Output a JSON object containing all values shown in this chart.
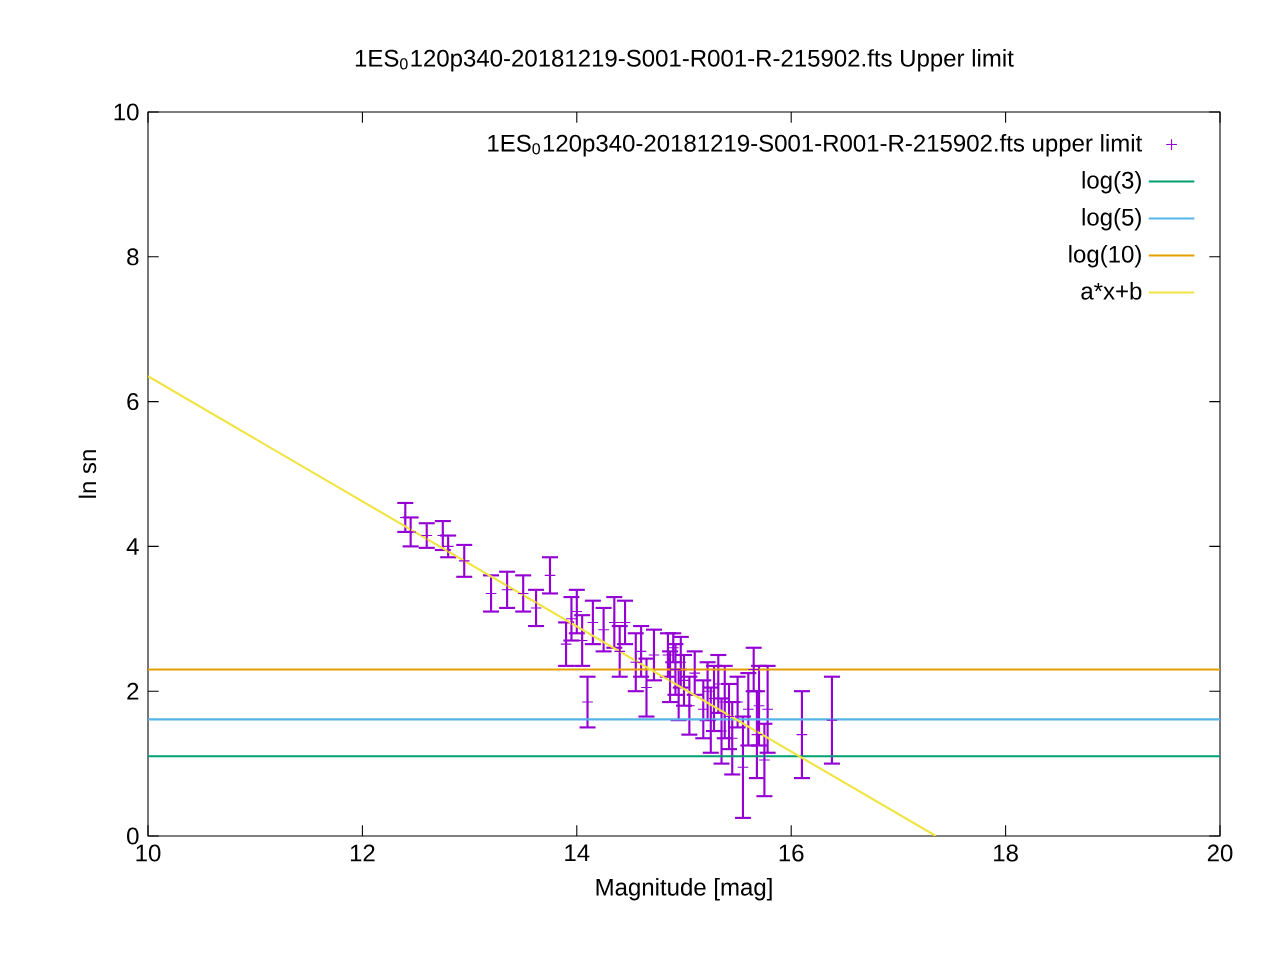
{
  "chart_data": {
    "type": "line",
    "title": "1ES$_{0}$120p340-20181219-S001-R001-R-215902.fts Upper limit",
    "xlabel": "Magnitude [mag]",
    "ylabel": "ln sn",
    "xlim": [
      10,
      20
    ],
    "ylim": [
      0,
      10
    ],
    "xticks": [
      10,
      12,
      14,
      16,
      18,
      20
    ],
    "yticks": [
      0,
      2,
      4,
      6,
      8,
      10
    ],
    "legend": "top right",
    "series": [
      {
        "name": "1ES$_{0}$120p340-20181219-S001-R001-R-215902.fts upper limit",
        "type": "scatter",
        "marker": "cross",
        "color": "#9400d3",
        "x": [
          12.4,
          12.45,
          12.6,
          12.75,
          12.8,
          12.95,
          13.2,
          13.35,
          13.5,
          13.62,
          13.75,
          13.9,
          13.95,
          14.0,
          14.05,
          14.1,
          14.15,
          14.25,
          14.35,
          14.4,
          14.45,
          14.55,
          14.6,
          14.65,
          14.72,
          14.85,
          14.87,
          14.9,
          14.92,
          14.95,
          14.97,
          15.0,
          15.05,
          15.1,
          15.18,
          15.22,
          15.25,
          15.28,
          15.32,
          15.35,
          15.38,
          15.42,
          15.45,
          15.5,
          15.55,
          15.6,
          15.65,
          15.68,
          15.7,
          15.75,
          15.78,
          16.1,
          16.38
        ],
        "values": [
          4.4,
          4.2,
          4.15,
          4.15,
          4.0,
          3.8,
          3.35,
          3.4,
          3.35,
          3.15,
          3.6,
          2.65,
          3.0,
          3.1,
          2.7,
          1.85,
          2.95,
          2.85,
          2.95,
          2.55,
          2.95,
          2.4,
          2.55,
          2.05,
          2.5,
          2.5,
          2.2,
          2.6,
          2.3,
          1.95,
          2.4,
          2.15,
          1.8,
          2.25,
          1.75,
          2.0,
          1.6,
          1.9,
          2.1,
          1.45,
          1.85,
          1.65,
          1.35,
          1.85,
          0.95,
          1.75,
          2.3,
          1.4,
          1.8,
          1.05,
          1.75,
          1.4,
          1.6
        ],
        "errors": [
          0.2,
          0.2,
          0.17,
          0.2,
          0.15,
          0.22,
          0.25,
          0.25,
          0.25,
          0.25,
          0.25,
          0.3,
          0.3,
          0.3,
          0.35,
          0.35,
          0.3,
          0.3,
          0.35,
          0.35,
          0.3,
          0.4,
          0.35,
          0.4,
          0.35,
          0.3,
          0.35,
          0.2,
          0.35,
          0.35,
          0.35,
          0.35,
          0.4,
          0.3,
          0.4,
          0.4,
          0.45,
          0.45,
          0.4,
          0.45,
          0.5,
          0.45,
          0.5,
          0.35,
          0.7,
          0.5,
          0.3,
          0.6,
          0.55,
          0.5,
          0.6,
          0.6,
          0.6
        ]
      },
      {
        "name": "log(3)",
        "color": "#009e73",
        "x": [
          10,
          20
        ],
        "values": [
          1.1,
          1.1
        ]
      },
      {
        "name": "log(5)",
        "color": "#56b4e9",
        "x": [
          10,
          20
        ],
        "values": [
          1.61,
          1.61
        ]
      },
      {
        "name": "log(10)",
        "color": "#e69f00",
        "x": [
          10,
          20
        ],
        "values": [
          2.3,
          2.3
        ]
      },
      {
        "name": "a*x+b",
        "color": "#f0e442",
        "x": [
          10,
          17.35
        ],
        "values": [
          6.35,
          0
        ]
      }
    ]
  }
}
